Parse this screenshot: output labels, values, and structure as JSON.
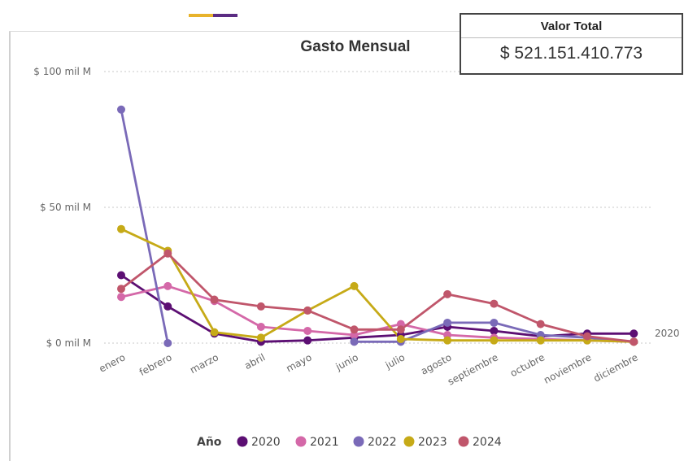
{
  "colors": {
    "accent_left": "#e8b32b",
    "accent_right": "#5b2c83"
  },
  "kpi": {
    "label": "Valor Total",
    "value": "$ 521.151.410.773"
  },
  "chart_data": {
    "type": "line",
    "title": "Gasto Mensual",
    "xlabel": "",
    "ylabel": "",
    "categories": [
      "enero",
      "febrero",
      "marzo",
      "abril",
      "mayo",
      "junio",
      "julio",
      "agosto",
      "septiembre",
      "octubre",
      "noviembre",
      "diciembre"
    ],
    "y_ticks": [
      {
        "value": 0,
        "label": "$ 0 mil M"
      },
      {
        "value": 50,
        "label": "$ 50 mil M"
      },
      {
        "value": 100,
        "label": "$ 100 mil M"
      }
    ],
    "ylim": [
      0,
      100
    ],
    "grid": true,
    "legend": {
      "title": "Año",
      "position": "bottom"
    },
    "series": [
      {
        "name": "2020",
        "color": "#5c0f73",
        "values": [
          25,
          13.5,
          3.5,
          0.5,
          1,
          2,
          3,
          6,
          4.5,
          2.5,
          3.5,
          3.5
        ]
      },
      {
        "name": "2021",
        "color": "#d468a8",
        "values": [
          17,
          21,
          15.5,
          6,
          4.5,
          3,
          7,
          3,
          2,
          1.5,
          1,
          0.5
        ]
      },
      {
        "name": "2022",
        "color": "#7a6ab8",
        "values": [
          86,
          0,
          null,
          null,
          null,
          0.5,
          0.5,
          7.5,
          7.5,
          3,
          2,
          0.5
        ]
      },
      {
        "name": "2023",
        "color": "#c6aa17",
        "values": [
          42,
          34,
          4,
          2,
          12,
          21,
          1.5,
          1,
          1,
          1,
          1,
          0.5
        ]
      },
      {
        "name": "2024",
        "color": "#c0566b",
        "values": [
          20,
          33,
          16,
          13.5,
          12,
          5,
          5,
          18,
          14.5,
          7,
          2.5,
          0.5
        ]
      }
    ],
    "end_label": "2020"
  }
}
